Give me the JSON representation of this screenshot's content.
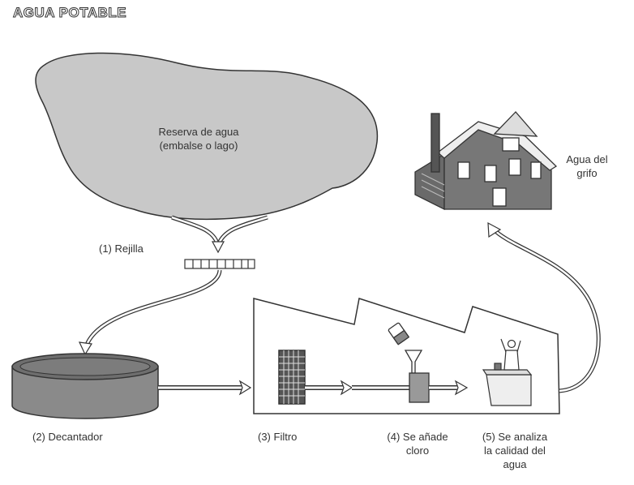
{
  "title": "AGUA POTABLE",
  "reservoir": {
    "line1": "Reserva de agua",
    "line2": "(embalse o lago)"
  },
  "house": {
    "line1": "Agua del",
    "line2": "grifo"
  },
  "steps": {
    "grid": "(1) Rejilla",
    "settler": "(2) Decantador",
    "filter": "(3) Filtro",
    "chlorine_line1": "(4) Se añade",
    "chlorine_line2": "cloro",
    "analysis_line1": "(5) Se analiza",
    "analysis_line2": "la calidad del",
    "analysis_line3": "agua"
  },
  "colors": {
    "stroke": "#333333",
    "cloud_fill": "#c8c8c8",
    "tank_fill": "#8a8a8a",
    "tank_top": "#6e6e6e"
  }
}
